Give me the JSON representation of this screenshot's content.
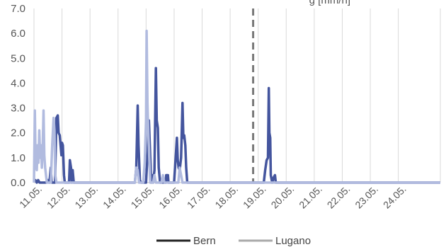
{
  "chart_data": {
    "type": "line",
    "title": "g [mm/h]",
    "xlabel": "",
    "ylabel": "",
    "ylim": [
      0,
      7
    ],
    "y_ticks": [
      "0.0",
      "1.0",
      "2.0",
      "3.0",
      "4.0",
      "5.0",
      "6.0",
      "7.0"
    ],
    "x_range": [
      0,
      14.5
    ],
    "x_ticks": [
      {
        "x": 0,
        "label": "11.05."
      },
      {
        "x": 1,
        "label": "12.05."
      },
      {
        "x": 2,
        "label": "13.05."
      },
      {
        "x": 3,
        "label": "14.05."
      },
      {
        "x": 4,
        "label": "15.05."
      },
      {
        "x": 5,
        "label": "16.05."
      },
      {
        "x": 6,
        "label": "17.05."
      },
      {
        "x": 7,
        "label": "18.05."
      },
      {
        "x": 8,
        "label": "19.05."
      },
      {
        "x": 9,
        "label": "20.05."
      },
      {
        "x": 10,
        "label": "21.05."
      },
      {
        "x": 11,
        "label": "22.05."
      },
      {
        "x": 12,
        "label": "23.05."
      },
      {
        "x": 13,
        "label": "24.05."
      }
    ],
    "grid": "vertical",
    "legend": "bottom",
    "vline": {
      "x": 7.82,
      "style": "dashed",
      "color": "#7a7a7a"
    },
    "series": [
      {
        "name": "Bern",
        "color": "#44559e",
        "points": [
          [
            0,
            0.1
          ],
          [
            0.05,
            0.1
          ],
          [
            0.1,
            0.0
          ],
          [
            0.15,
            0.1
          ],
          [
            0.2,
            0.0
          ],
          [
            0.25,
            0.0
          ],
          [
            0.45,
            0.0
          ],
          [
            0.5,
            0.1
          ],
          [
            0.55,
            0.0
          ],
          [
            0.6,
            0.6
          ],
          [
            0.63,
            0.0
          ],
          [
            0.75,
            0.0
          ],
          [
            0.8,
            2.6
          ],
          [
            0.85,
            2.7
          ],
          [
            0.88,
            2.0
          ],
          [
            0.92,
            1.9
          ],
          [
            0.95,
            1.5
          ],
          [
            0.98,
            1.1
          ],
          [
            1.0,
            1.6
          ],
          [
            1.03,
            1.5
          ],
          [
            1.07,
            0.3
          ],
          [
            1.1,
            0.0
          ],
          [
            1.25,
            0.0
          ],
          [
            1.28,
            0.9
          ],
          [
            1.32,
            0.6
          ],
          [
            1.35,
            0.0
          ],
          [
            1.38,
            0.5
          ],
          [
            1.42,
            0.0
          ],
          [
            3.6,
            0.0
          ],
          [
            3.65,
            0.6
          ],
          [
            3.7,
            3.1
          ],
          [
            3.73,
            1.5
          ],
          [
            3.78,
            0.1
          ],
          [
            3.82,
            0.0
          ],
          [
            4.0,
            0.0
          ],
          [
            4.05,
            1.1
          ],
          [
            4.1,
            2.5
          ],
          [
            4.15,
            1.0
          ],
          [
            4.18,
            0.0
          ],
          [
            4.22,
            0.3
          ],
          [
            4.25,
            0.0
          ],
          [
            4.3,
            0.5
          ],
          [
            4.35,
            4.6
          ],
          [
            4.38,
            2.5
          ],
          [
            4.42,
            2.2
          ],
          [
            4.45,
            0.6
          ],
          [
            4.5,
            0.0
          ],
          [
            4.7,
            0.0
          ],
          [
            4.72,
            0.3
          ],
          [
            4.78,
            0.3
          ],
          [
            4.8,
            0.0
          ],
          [
            5.0,
            0.0
          ],
          [
            5.05,
            0.9
          ],
          [
            5.1,
            1.8
          ],
          [
            5.13,
            0.9
          ],
          [
            5.16,
            0.6
          ],
          [
            5.2,
            0.5
          ],
          [
            5.25,
            1.0
          ],
          [
            5.3,
            3.2
          ],
          [
            5.33,
            1.8
          ],
          [
            5.36,
            1.9
          ],
          [
            5.4,
            1.5
          ],
          [
            5.43,
            0.6
          ],
          [
            5.47,
            0.0
          ],
          [
            8.2,
            0.0
          ],
          [
            8.25,
            0.5
          ],
          [
            8.3,
            0.9
          ],
          [
            8.35,
            1.0
          ],
          [
            8.38,
            3.8
          ],
          [
            8.4,
            2.0
          ],
          [
            8.43,
            1.8
          ],
          [
            8.45,
            0.3
          ],
          [
            8.5,
            0.0
          ],
          [
            8.55,
            0.2
          ],
          [
            8.6,
            0.3
          ],
          [
            8.63,
            0.0
          ],
          [
            14.5,
            0.0
          ]
        ]
      },
      {
        "name": "Lugano",
        "color": "#b1bbdf",
        "points": [
          [
            0,
            0.0
          ],
          [
            0.03,
            2.9
          ],
          [
            0.06,
            0.7
          ],
          [
            0.1,
            0.5
          ],
          [
            0.13,
            1.5
          ],
          [
            0.16,
            0.8
          ],
          [
            0.19,
            2.1
          ],
          [
            0.22,
            1.0
          ],
          [
            0.25,
            1.5
          ],
          [
            0.28,
            0.6
          ],
          [
            0.31,
            1.4
          ],
          [
            0.34,
            2.9
          ],
          [
            0.37,
            1.1
          ],
          [
            0.4,
            0.6
          ],
          [
            0.43,
            0.3
          ],
          [
            0.46,
            0.0
          ],
          [
            0.6,
            0.0
          ],
          [
            0.65,
            1.5
          ],
          [
            0.7,
            2.6
          ],
          [
            0.73,
            2.1
          ],
          [
            0.76,
            0.3
          ],
          [
            0.8,
            0.0
          ],
          [
            1.35,
            0.0
          ],
          [
            3.6,
            0.0
          ],
          [
            3.65,
            0.6
          ],
          [
            3.7,
            0.5
          ],
          [
            3.75,
            0.0
          ],
          [
            3.9,
            0.0
          ],
          [
            3.95,
            0.8
          ],
          [
            4.0,
            2.5
          ],
          [
            4.02,
            6.1
          ],
          [
            4.05,
            3.2
          ],
          [
            4.08,
            2.0
          ],
          [
            4.12,
            0.8
          ],
          [
            4.15,
            0.0
          ],
          [
            4.25,
            0.0
          ],
          [
            4.3,
            0.3
          ],
          [
            4.35,
            0.0
          ],
          [
            4.55,
            0.0
          ],
          [
            4.6,
            0.3
          ],
          [
            4.65,
            0.0
          ],
          [
            4.9,
            0.0
          ],
          [
            5.15,
            0.0
          ],
          [
            5.2,
            0.6
          ],
          [
            5.25,
            0.3
          ],
          [
            5.3,
            0.0
          ],
          [
            14.5,
            0.0
          ]
        ]
      }
    ]
  }
}
